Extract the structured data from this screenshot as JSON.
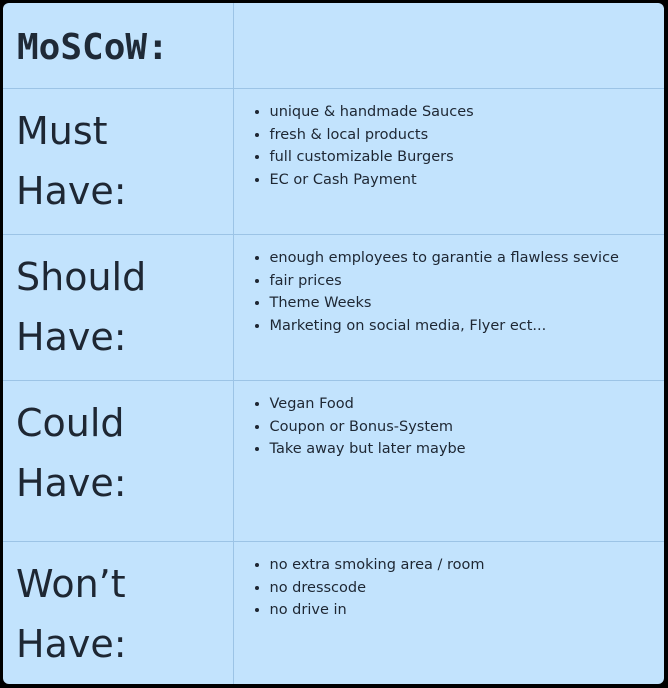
{
  "title": "MoSCoW:",
  "rows": [
    {
      "line1": "Must",
      "line2": "Have:",
      "items": [
        "unique & handmade Sauces",
        "fresh & local products",
        "full customizable Burgers",
        "EC or Cash Payment"
      ]
    },
    {
      "line1": "Should",
      "line2": "Have:",
      "items": [
        "enough employees to garantie a flawless sevice",
        "fair prices",
        "Theme Weeks",
        "Marketing on social media, Flyer ect..."
      ]
    },
    {
      "line1": "Could",
      "line2": "Have:",
      "items": [
        "Vegan Food",
        "Coupon or Bonus-System",
        "Take away but later maybe"
      ]
    },
    {
      "line1": "Won’t",
      "line2": "Have:",
      "items": [
        "no extra smoking area / room",
        "no dresscode",
        "no drive in"
      ]
    }
  ]
}
